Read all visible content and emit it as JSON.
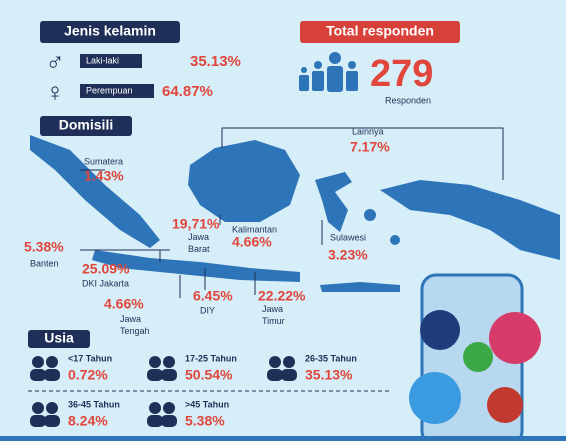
{
  "gender": {
    "title": "Jenis kelamin",
    "items": [
      {
        "label": "Laki-laki",
        "value": "35.13%"
      },
      {
        "label": "Perempuan",
        "value": "64.87%"
      }
    ]
  },
  "total": {
    "title": "Total responden",
    "value": "279",
    "unit": "Responden"
  },
  "domicile": {
    "title": "Domisili",
    "regions": [
      {
        "name": "Sumatera",
        "value": "1.43%"
      },
      {
        "name": "Lainnya",
        "value": "7.17%"
      },
      {
        "name": "Jawa Barat",
        "value": "19,71%"
      },
      {
        "name": "Kalimantan",
        "value": "4.66%"
      },
      {
        "name": "Sulawesi",
        "value": "3.23%"
      },
      {
        "name": "Banten",
        "value": "5.38%"
      },
      {
        "name": "DKI Jakarta",
        "value": "25.09%"
      },
      {
        "name": "Jawa Tengah",
        "value": "4.66%"
      },
      {
        "name": "DIY",
        "value": "6.45%"
      },
      {
        "name": "Jawa Timur",
        "value": "22.22%"
      }
    ]
  },
  "age": {
    "title": "Usia",
    "groups": [
      {
        "label": "<17 Tahun",
        "value": "0.72%"
      },
      {
        "label": "17-25 Tahun",
        "value": "50.54%"
      },
      {
        "label": "26-35 Tahun",
        "value": "35.13%"
      },
      {
        "label": "36-45 Tahun",
        "value": "8.24%"
      },
      {
        "label": ">45 Tahun",
        "value": "5.38%"
      }
    ]
  }
}
